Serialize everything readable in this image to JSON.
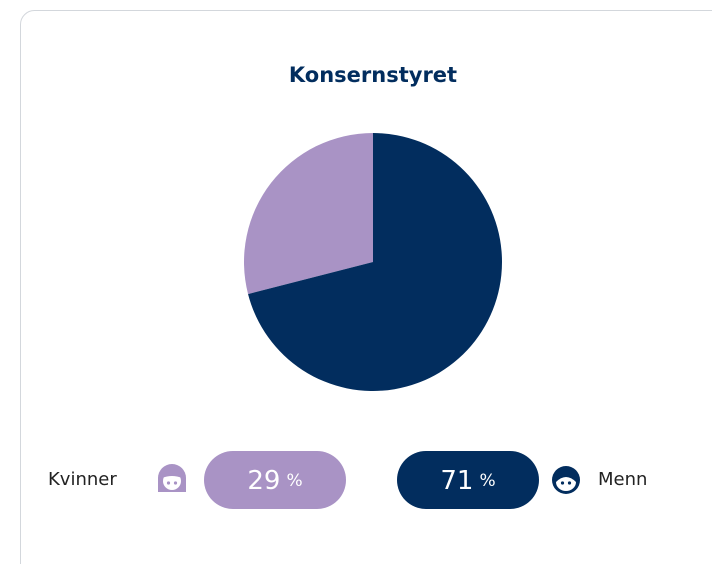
{
  "chart_data": {
    "type": "pie",
    "title": "Konsernstyret",
    "categories": [
      "Kvinner",
      "Menn"
    ],
    "values": [
      29,
      71
    ],
    "colors": [
      "#a993c5",
      "#022d5e"
    ],
    "unit": "%"
  }
}
